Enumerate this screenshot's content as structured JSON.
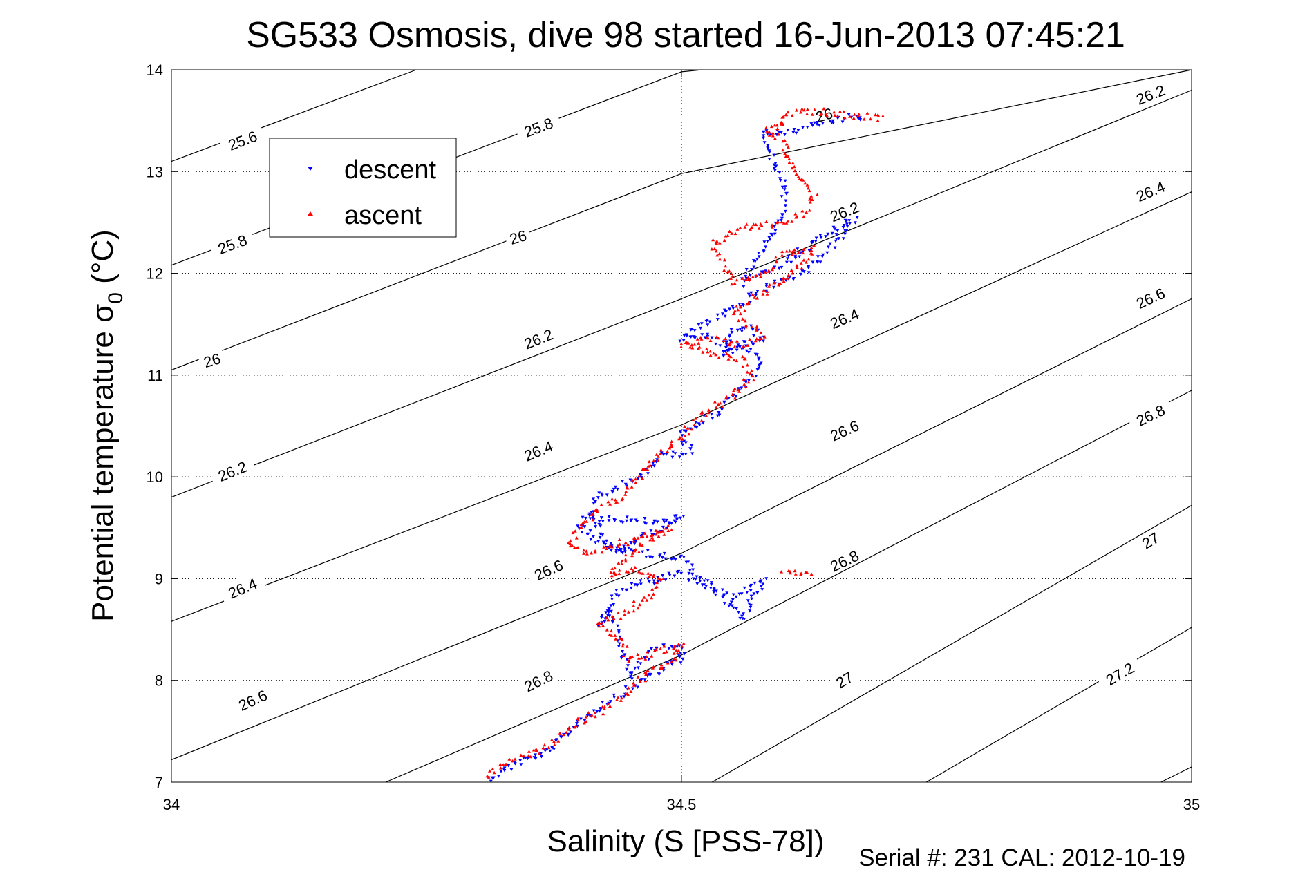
{
  "chart_data": {
    "type": "scatter",
    "title": "SG533 Osmosis, dive 98 started 16-Jun-2013 07:45:21",
    "xlabel": "Salinity (S [PSS-78])",
    "ylabel_main": "Potential temperature σ",
    "ylabel_sub": "0",
    "ylabel_unit": "(°C)",
    "footer": "Serial #: 231  CAL: 2012-10-19",
    "xlim": [
      34,
      35
    ],
    "ylim": [
      7,
      14
    ],
    "x_ticks": [
      "34",
      "34.5",
      "35"
    ],
    "x_tick_values": [
      34,
      34.5,
      35
    ],
    "y_ticks": [
      "7",
      "8",
      "9",
      "10",
      "11",
      "12",
      "13",
      "14"
    ],
    "y_tick_values": [
      7,
      8,
      9,
      10,
      11,
      12,
      13,
      14
    ],
    "grid": "dotted",
    "legend_position": "top-left",
    "colors": {
      "descent": "#0000ff",
      "ascent": "#ff0000",
      "contour": "#000000"
    },
    "contours": [
      {
        "level": "25.6",
        "points": [
          [
            34.0,
            13.1
          ],
          [
            34.24,
            14.0
          ]
        ],
        "labels": [
          [
            34.07,
            13.3
          ]
        ]
      },
      {
        "level": "25.8",
        "points": [
          [
            34.0,
            12.08
          ],
          [
            34.5,
            13.98
          ],
          [
            34.52,
            14.0
          ]
        ],
        "labels": [
          [
            34.06,
            12.28
          ],
          [
            34.36,
            13.43
          ]
        ]
      },
      {
        "level": "26",
        "points": [
          [
            34.0,
            11.05
          ],
          [
            34.5,
            12.98
          ],
          [
            35.0,
            14.0
          ]
        ],
        "labels": [
          [
            34.04,
            11.14
          ],
          [
            34.34,
            12.35
          ],
          [
            34.64,
            13.55
          ]
        ]
      },
      {
        "level": "26.2",
        "points": [
          [
            34.0,
            9.8
          ],
          [
            34.5,
            11.75
          ],
          [
            35.0,
            13.8
          ]
        ],
        "labels": [
          [
            34.06,
            10.05
          ],
          [
            34.36,
            11.35
          ],
          [
            34.66,
            12.6
          ],
          [
            34.96,
            13.75
          ]
        ]
      },
      {
        "level": "26.4",
        "points": [
          [
            34.0,
            8.58
          ],
          [
            34.5,
            10.51
          ],
          [
            35.0,
            12.8
          ]
        ],
        "labels": [
          [
            34.07,
            8.9
          ],
          [
            34.36,
            10.25
          ],
          [
            34.66,
            11.55
          ],
          [
            34.96,
            12.8
          ]
        ]
      },
      {
        "level": "26.6",
        "points": [
          [
            34.0,
            7.22
          ],
          [
            34.5,
            9.25
          ],
          [
            35.0,
            11.75
          ]
        ],
        "labels": [
          [
            34.08,
            7.8
          ],
          [
            34.37,
            9.08
          ],
          [
            34.66,
            10.45
          ],
          [
            34.96,
            11.75
          ]
        ]
      },
      {
        "level": "26.8",
        "points": [
          [
            34.21,
            7.0
          ],
          [
            34.5,
            8.25
          ],
          [
            35.0,
            10.85
          ]
        ],
        "labels": [
          [
            34.36,
            7.99
          ],
          [
            34.66,
            9.17
          ],
          [
            34.96,
            10.6
          ]
        ]
      },
      {
        "level": "27",
        "points": [
          [
            34.53,
            7.0
          ],
          [
            35.0,
            9.72
          ]
        ],
        "labels": [
          [
            34.66,
            8.0
          ],
          [
            34.96,
            9.37
          ]
        ]
      },
      {
        "level": "27.2",
        "points": [
          [
            34.74,
            7.0
          ],
          [
            35.0,
            8.52
          ]
        ],
        "labels": [
          [
            34.93,
            8.06
          ]
        ]
      },
      {
        "level": "",
        "points": [
          [
            34.97,
            7.0
          ],
          [
            35.0,
            7.15
          ]
        ],
        "labels": []
      }
    ],
    "series": [
      {
        "name": "descent",
        "marker": "down-triangle",
        "path": [
          [
            34.31,
            7.03
          ],
          [
            34.34,
            7.2
          ],
          [
            34.37,
            7.3
          ],
          [
            34.4,
            7.6
          ],
          [
            34.43,
            7.8
          ],
          [
            34.47,
            8.05
          ],
          [
            34.5,
            8.2
          ],
          [
            34.5,
            8.35
          ],
          [
            34.47,
            8.3
          ],
          [
            34.45,
            8.05
          ],
          [
            34.43,
            8.7
          ],
          [
            34.42,
            8.55
          ],
          [
            34.44,
            8.9
          ],
          [
            34.46,
            8.95
          ],
          [
            34.48,
            9.0
          ],
          [
            34.5,
            9.05
          ],
          [
            34.52,
            8.95
          ],
          [
            34.55,
            8.8
          ],
          [
            34.58,
            9.0
          ],
          [
            34.56,
            8.6
          ],
          [
            34.5,
            9.2
          ],
          [
            34.46,
            9.25
          ],
          [
            34.43,
            9.3
          ],
          [
            34.41,
            9.6
          ],
          [
            34.48,
            9.55
          ],
          [
            34.5,
            9.6
          ],
          [
            34.46,
            9.4
          ],
          [
            34.44,
            9.25
          ],
          [
            34.4,
            9.5
          ],
          [
            34.42,
            9.8
          ],
          [
            34.46,
            10.0
          ],
          [
            34.48,
            10.2
          ],
          [
            34.51,
            10.25
          ],
          [
            34.5,
            10.4
          ],
          [
            34.53,
            10.6
          ],
          [
            34.55,
            10.8
          ],
          [
            34.57,
            11.0
          ],
          [
            34.58,
            11.15
          ],
          [
            34.56,
            11.3
          ],
          [
            34.54,
            11.2
          ],
          [
            34.55,
            11.45
          ],
          [
            34.57,
            11.45
          ],
          [
            34.58,
            11.35
          ],
          [
            34.55,
            11.25
          ],
          [
            34.52,
            11.4
          ],
          [
            34.5,
            11.35
          ],
          [
            34.52,
            11.5
          ],
          [
            34.54,
            11.6
          ],
          [
            34.56,
            11.7
          ],
          [
            34.58,
            11.85
          ],
          [
            34.6,
            11.92
          ],
          [
            34.62,
            12.0
          ],
          [
            34.64,
            12.2
          ],
          [
            34.66,
            12.4
          ],
          [
            34.67,
            12.53
          ],
          [
            34.63,
            12.3
          ],
          [
            34.6,
            12.1
          ],
          [
            34.58,
            12.0
          ],
          [
            34.56,
            11.9
          ],
          [
            34.6,
            12.6
          ],
          [
            34.6,
            12.9
          ],
          [
            34.59,
            13.1
          ],
          [
            34.58,
            13.3
          ],
          [
            34.58,
            13.4
          ],
          [
            34.6,
            13.37
          ],
          [
            34.64,
            13.48
          ],
          [
            34.68,
            13.55
          ]
        ]
      },
      {
        "name": "ascent",
        "marker": "up-triangle",
        "path": [
          [
            34.31,
            7.05
          ],
          [
            34.33,
            7.2
          ],
          [
            34.36,
            7.3
          ],
          [
            34.38,
            7.45
          ],
          [
            34.4,
            7.6
          ],
          [
            34.43,
            7.75
          ],
          [
            34.45,
            7.9
          ],
          [
            34.47,
            8.1
          ],
          [
            34.49,
            8.2
          ],
          [
            34.5,
            8.35
          ],
          [
            34.45,
            8.2
          ],
          [
            34.44,
            8.4
          ],
          [
            34.42,
            8.55
          ],
          [
            34.45,
            8.7
          ],
          [
            34.47,
            8.85
          ],
          [
            34.48,
            9.0
          ],
          [
            34.45,
            9.1
          ],
          [
            34.43,
            9.05
          ],
          [
            34.47,
            9.4
          ],
          [
            34.49,
            9.5
          ],
          [
            34.44,
            9.35
          ],
          [
            34.41,
            9.25
          ],
          [
            34.39,
            9.3
          ],
          [
            34.4,
            9.5
          ],
          [
            34.42,
            9.7
          ],
          [
            34.44,
            9.8
          ],
          [
            34.46,
            10.0
          ],
          [
            34.48,
            10.25
          ],
          [
            34.5,
            10.4
          ],
          [
            34.52,
            10.6
          ],
          [
            34.55,
            10.8
          ],
          [
            34.57,
            11.0
          ],
          [
            34.56,
            11.15
          ],
          [
            34.52,
            11.25
          ],
          [
            34.5,
            11.3
          ],
          [
            34.53,
            11.35
          ],
          [
            34.56,
            11.3
          ],
          [
            34.58,
            11.4
          ],
          [
            34.55,
            11.6
          ],
          [
            34.57,
            11.75
          ],
          [
            34.6,
            11.95
          ],
          [
            34.62,
            12.1
          ],
          [
            34.63,
            12.25
          ],
          [
            34.6,
            12.2
          ],
          [
            34.58,
            12.0
          ],
          [
            34.55,
            11.9
          ],
          [
            34.53,
            12.3
          ],
          [
            34.56,
            12.45
          ],
          [
            34.6,
            12.5
          ],
          [
            34.62,
            12.6
          ],
          [
            34.63,
            12.8
          ],
          [
            34.61,
            13.0
          ],
          [
            34.6,
            13.3
          ],
          [
            34.58,
            13.4
          ],
          [
            34.6,
            13.45
          ],
          [
            34.6,
            13.55
          ],
          [
            34.62,
            13.6
          ],
          [
            34.65,
            13.57
          ],
          [
            34.7,
            13.52
          ],
          [
            34.6,
            9.1
          ],
          [
            34.63,
            9.05
          ]
        ]
      }
    ]
  }
}
